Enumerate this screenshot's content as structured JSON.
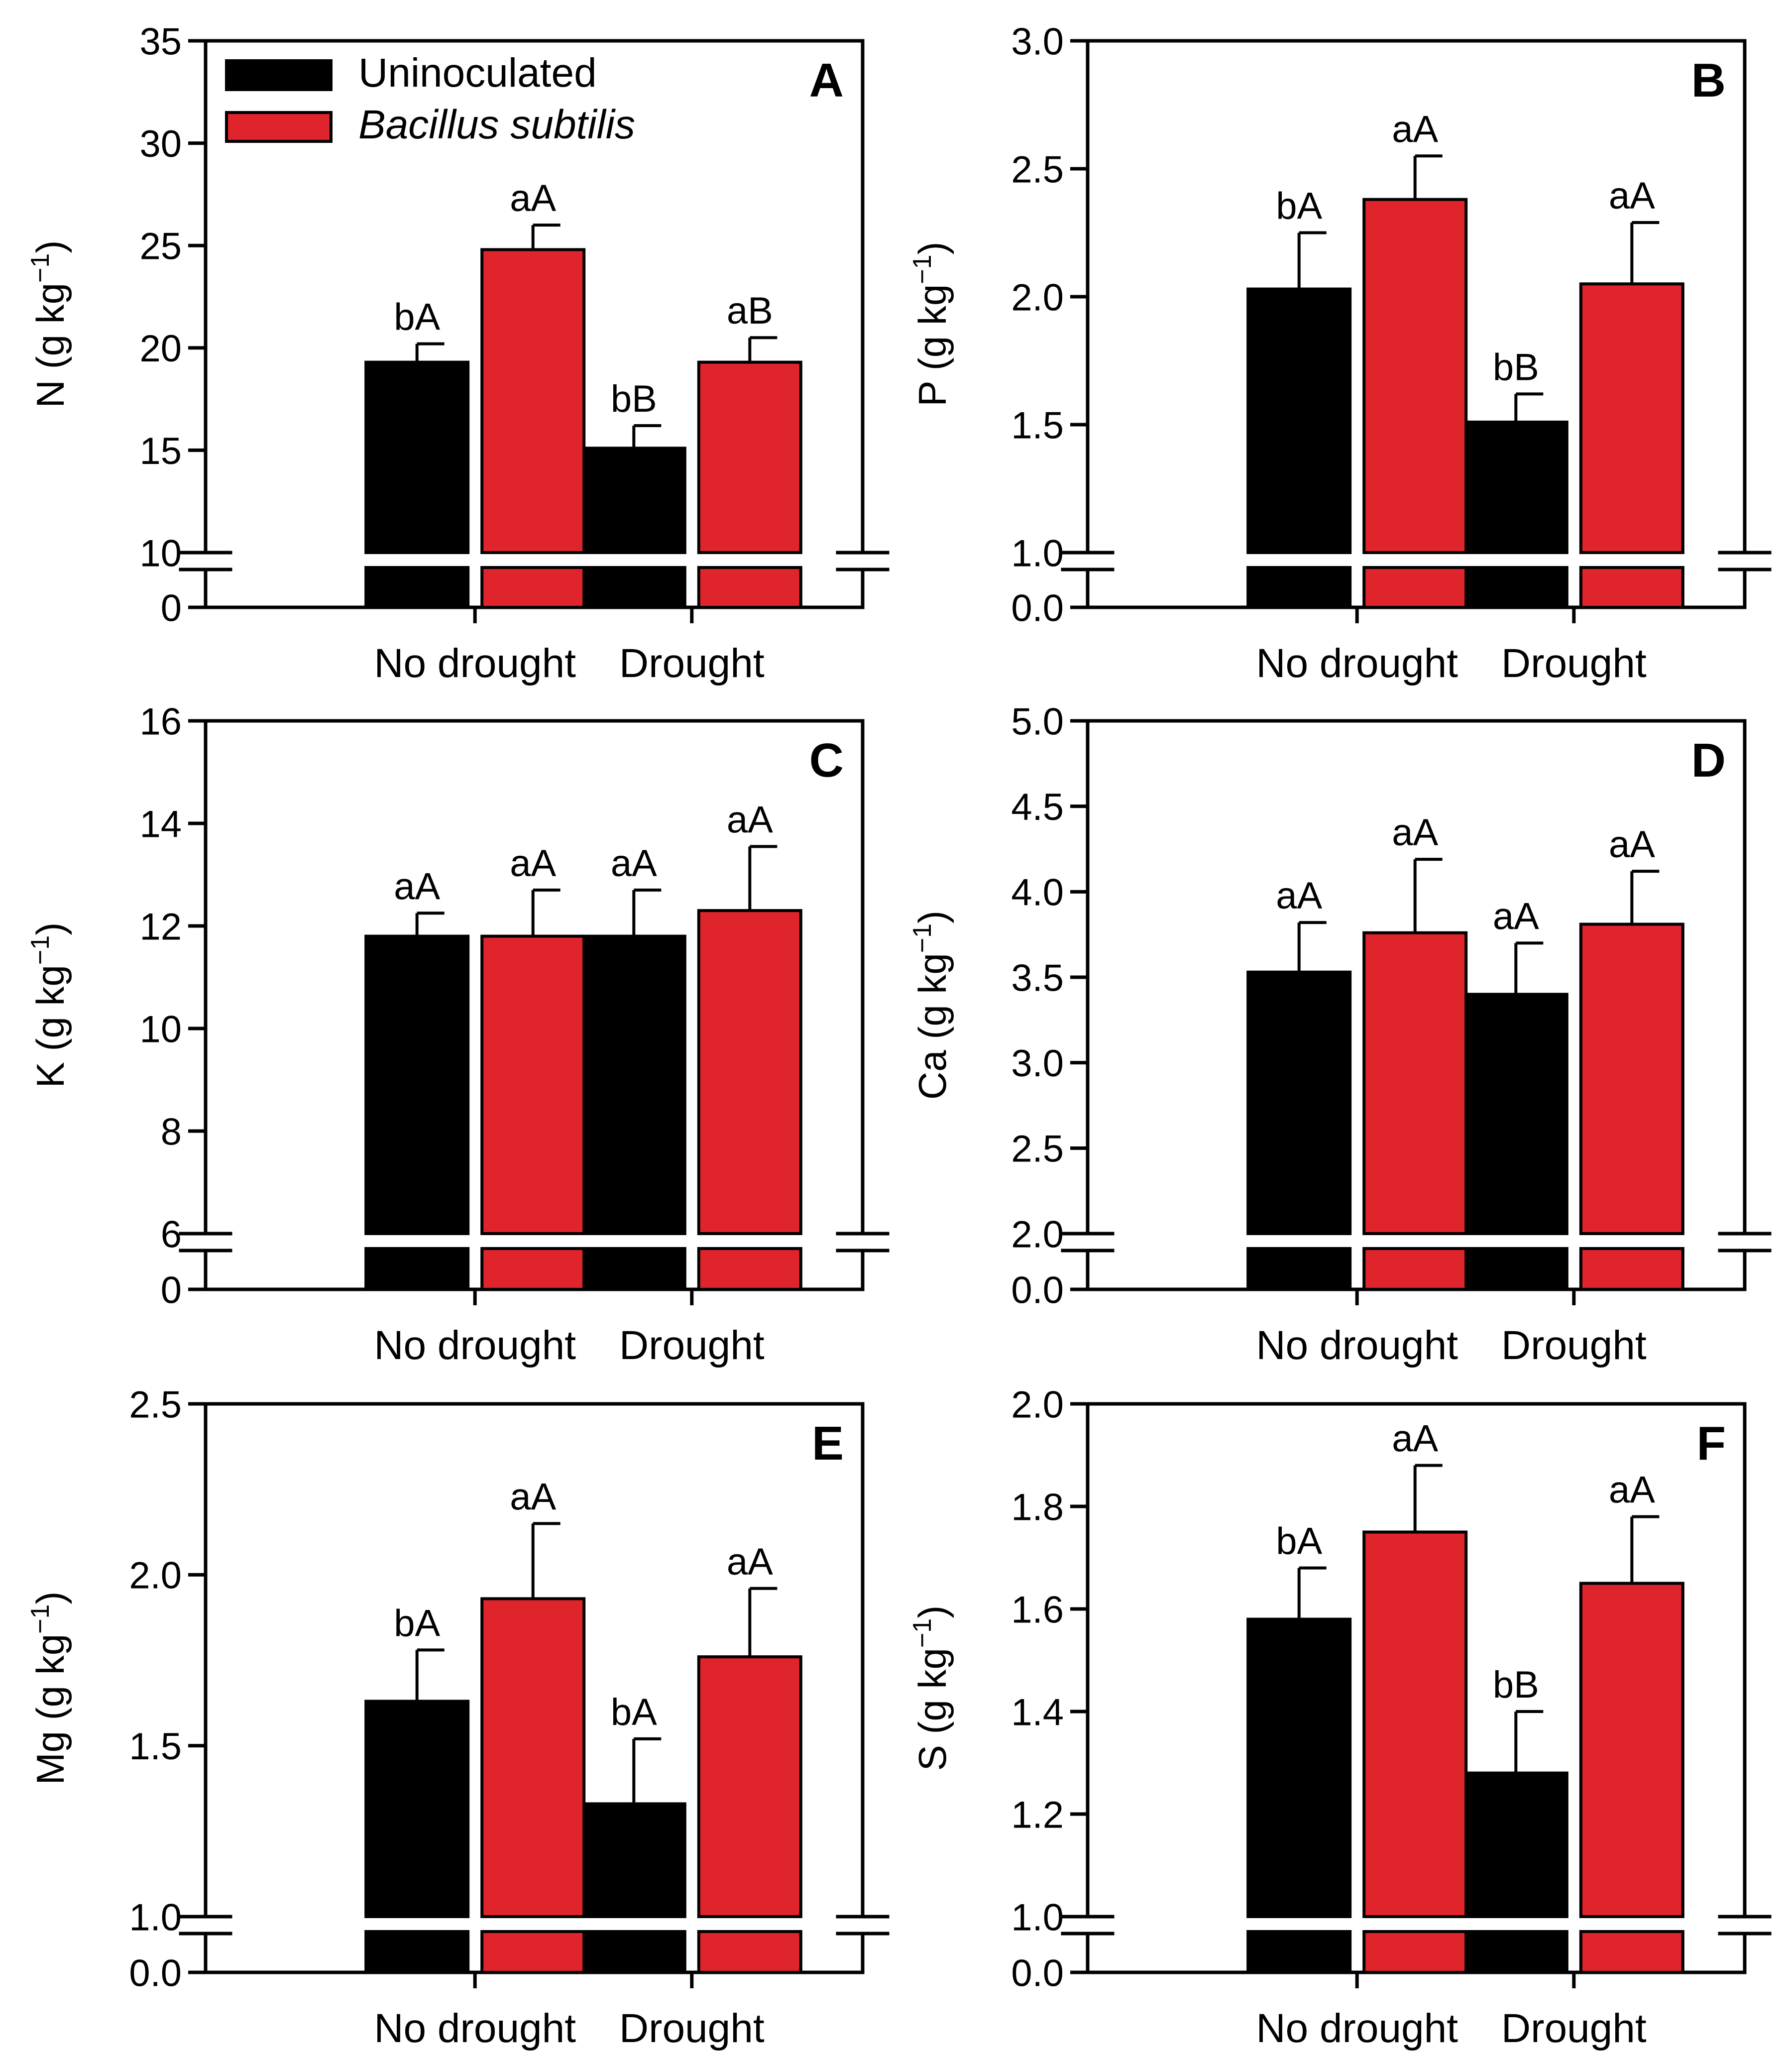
{
  "colors": {
    "uninoculated": "#000000",
    "bacillus": "#e0242b",
    "axis": "#000000"
  },
  "legend": {
    "items": [
      {
        "label": "Uninoculated",
        "color": "#000000",
        "italic": false
      },
      {
        "label": "Bacillus subtilis",
        "color": "#e0242b",
        "italic": true
      }
    ]
  },
  "chart_data": [
    {
      "type": "bar",
      "panel": "A",
      "categories": [
        "No drought",
        "Drought"
      ],
      "ylabel": "N (g kg",
      "ylabel_sup": "−1",
      "ylabel_tail": ")",
      "ylim": [
        10,
        35
      ],
      "yticks": [
        10,
        15,
        20,
        25,
        30,
        35
      ],
      "tick_labels": [
        "10",
        "15",
        "20",
        "25",
        "30",
        "35"
      ],
      "break_tick_label": "0",
      "legend_position": "top-left",
      "series": [
        {
          "name": "Uninoculated",
          "values": [
            19.3,
            15.1
          ],
          "errors": [
            0.9,
            1.1
          ],
          "letters": [
            "bA",
            "bB"
          ]
        },
        {
          "name": "Bacillus subtilis",
          "values": [
            24.8,
            19.3
          ],
          "errors": [
            1.2,
            1.2
          ],
          "letters": [
            "aA",
            "aB"
          ]
        }
      ]
    },
    {
      "type": "bar",
      "panel": "B",
      "categories": [
        "No drought",
        "Drought"
      ],
      "ylabel": "P (g kg",
      "ylabel_sup": "−1",
      "ylabel_tail": ")",
      "ylim": [
        1.0,
        3.0
      ],
      "yticks": [
        1.0,
        1.5,
        2.0,
        2.5,
        3.0
      ],
      "tick_labels": [
        "1.0",
        "1.5",
        "2.0",
        "2.5",
        "3.0"
      ],
      "break_tick_label": "0.0",
      "series": [
        {
          "name": "Uninoculated",
          "values": [
            2.03,
            1.51
          ],
          "errors": [
            0.22,
            0.11
          ],
          "letters": [
            "bA",
            "bB"
          ]
        },
        {
          "name": "Bacillus subtilis",
          "values": [
            2.38,
            2.05
          ],
          "errors": [
            0.17,
            0.24
          ],
          "letters": [
            "aA",
            "aA"
          ]
        }
      ]
    },
    {
      "type": "bar",
      "panel": "C",
      "categories": [
        "No drought",
        "Drought"
      ],
      "ylabel": "K (g kg",
      "ylabel_sup": "−1",
      "ylabel_tail": ")",
      "ylim": [
        6,
        16
      ],
      "yticks": [
        6,
        8,
        10,
        12,
        14,
        16
      ],
      "tick_labels": [
        "6",
        "8",
        "10",
        "12",
        "14",
        "16"
      ],
      "break_tick_label": "0",
      "series": [
        {
          "name": "Uninoculated",
          "values": [
            11.8,
            11.8
          ],
          "errors": [
            0.45,
            0.9
          ],
          "letters": [
            "aA",
            "aA"
          ]
        },
        {
          "name": "Bacillus subtilis",
          "values": [
            11.8,
            12.3
          ],
          "errors": [
            0.9,
            1.25
          ],
          "letters": [
            "aA",
            "aA"
          ]
        }
      ]
    },
    {
      "type": "bar",
      "panel": "D",
      "categories": [
        "No drought",
        "Drought"
      ],
      "ylabel": "Ca (g kg",
      "ylabel_sup": "−1",
      "ylabel_tail": ")",
      "ylim": [
        2.0,
        5.0
      ],
      "yticks": [
        2.0,
        2.5,
        3.0,
        3.5,
        4.0,
        4.5,
        5.0
      ],
      "tick_labels": [
        "2.0",
        "2.5",
        "3.0",
        "3.5",
        "4.0",
        "4.5",
        "5.0"
      ],
      "break_tick_label": "0.0",
      "series": [
        {
          "name": "Uninoculated",
          "values": [
            3.53,
            3.4
          ],
          "errors": [
            0.29,
            0.3
          ],
          "letters": [
            "aA",
            "aA"
          ]
        },
        {
          "name": "Bacillus subtilis",
          "values": [
            3.76,
            3.81
          ],
          "errors": [
            0.43,
            0.31
          ],
          "letters": [
            "aA",
            "aA"
          ]
        }
      ]
    },
    {
      "type": "bar",
      "panel": "E",
      "categories": [
        "No drought",
        "Drought"
      ],
      "ylabel": "Mg (g kg",
      "ylabel_sup": "−1",
      "ylabel_tail": ")",
      "ylim": [
        1.0,
        2.5
      ],
      "yticks": [
        1.0,
        1.5,
        2.0,
        2.5
      ],
      "tick_labels": [
        "1.0",
        "1.5",
        "2.0",
        "2.5"
      ],
      "break_tick_label": "0.0",
      "series": [
        {
          "name": "Uninoculated",
          "values": [
            1.63,
            1.33
          ],
          "errors": [
            0.15,
            0.19
          ],
          "letters": [
            "bA",
            "bA"
          ]
        },
        {
          "name": "Bacillus subtilis",
          "values": [
            1.93,
            1.76
          ],
          "errors": [
            0.22,
            0.2
          ],
          "letters": [
            "aA",
            "aA"
          ]
        }
      ]
    },
    {
      "type": "bar",
      "panel": "F",
      "categories": [
        "No drought",
        "Drought"
      ],
      "ylabel": "S (g kg",
      "ylabel_sup": "−1",
      "ylabel_tail": ")",
      "ylim": [
        1.0,
        2.0
      ],
      "yticks": [
        1.0,
        1.2,
        1.4,
        1.6,
        1.8,
        2.0
      ],
      "tick_labels": [
        "1.0",
        "1.2",
        "1.4",
        "1.6",
        "1.8",
        "2.0"
      ],
      "break_tick_label": "0.0",
      "series": [
        {
          "name": "Uninoculated",
          "values": [
            1.58,
            1.28
          ],
          "errors": [
            0.1,
            0.12
          ],
          "letters": [
            "bA",
            "bB"
          ]
        },
        {
          "name": "Bacillus subtilis",
          "values": [
            1.75,
            1.65
          ],
          "errors": [
            0.13,
            0.13
          ],
          "letters": [
            "aA",
            "aA"
          ]
        }
      ]
    }
  ]
}
